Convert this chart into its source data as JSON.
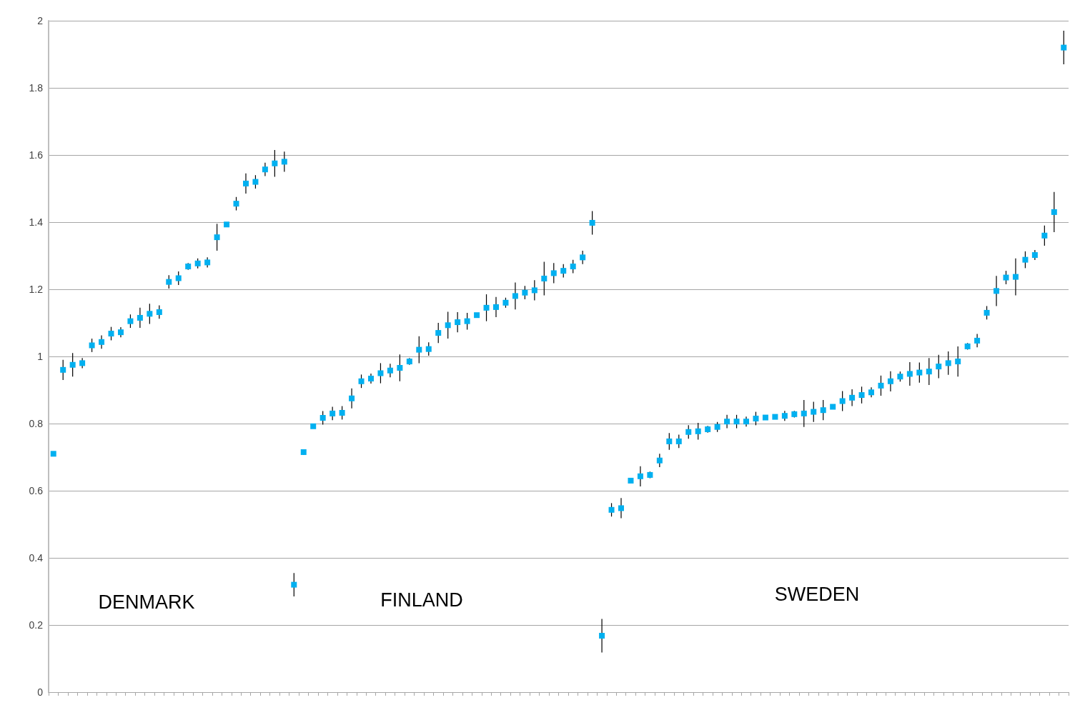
{
  "chart_data": {
    "type": "scatter",
    "categories": [
      null,
      null,
      null,
      null,
      null,
      null,
      null,
      null,
      null,
      null,
      null,
      null,
      null,
      null,
      null,
      null,
      null,
      null,
      null,
      null,
      null,
      null,
      null,
      null,
      null,
      null,
      null,
      null,
      null,
      null,
      null,
      null,
      null,
      null,
      null,
      null,
      null,
      null,
      null,
      null,
      null,
      null,
      null,
      null,
      null,
      null,
      null,
      null,
      null,
      null,
      null,
      null,
      null,
      null,
      null,
      null,
      null,
      null,
      null,
      null,
      null,
      null,
      null,
      null,
      null,
      null,
      null,
      null,
      null,
      null,
      null,
      null,
      null,
      null,
      null,
      null,
      null,
      null,
      null,
      null,
      null,
      null,
      null,
      null,
      null,
      null,
      null,
      null,
      null,
      null,
      null,
      null,
      null,
      null,
      null,
      null,
      null,
      null,
      null,
      null,
      null,
      null,
      null,
      null,
      null,
      null
    ],
    "values": [
      0.71,
      0.96,
      0.975,
      0.98,
      1.033,
      1.043,
      1.068,
      1.072,
      1.105,
      1.115,
      1.127,
      1.132,
      1.222,
      1.233,
      1.268,
      1.277,
      1.28,
      1.355,
      1.393,
      1.455,
      1.515,
      1.52,
      1.557,
      1.575,
      1.58,
      0.32,
      0.715,
      0.792,
      0.817,
      0.83,
      0.832,
      0.875,
      0.926,
      0.934,
      0.95,
      0.958,
      0.966,
      0.985,
      1.02,
      1.022,
      1.07,
      1.093,
      1.102,
      1.105,
      1.123,
      1.145,
      1.147,
      1.16,
      1.18,
      1.19,
      1.197,
      1.232,
      1.248,
      1.255,
      1.268,
      1.295,
      1.398,
      0.168,
      0.543,
      0.548,
      0.63,
      0.643,
      0.647,
      0.69,
      0.747,
      0.747,
      0.775,
      0.777,
      0.783,
      0.79,
      0.806,
      0.806,
      0.806,
      0.815,
      0.818,
      0.82,
      0.823,
      0.828,
      0.83,
      0.835,
      0.84,
      0.85,
      0.867,
      0.877,
      0.885,
      0.893,
      0.913,
      0.926,
      0.94,
      0.948,
      0.952,
      0.955,
      0.97,
      0.98,
      0.985,
      1.03,
      1.047,
      1.13,
      1.195,
      1.235,
      1.237,
      1.288,
      1.302,
      1.36,
      1.43,
      1.92
    ],
    "errors": [
      0.005,
      0.03,
      0.035,
      0.015,
      0.02,
      0.02,
      0.02,
      0.015,
      0.02,
      0.03,
      0.03,
      0.02,
      0.02,
      0.02,
      0.01,
      0.015,
      0.015,
      0.04,
      null,
      0.02,
      0.03,
      0.02,
      0.02,
      0.04,
      0.03,
      0.035,
      0.008,
      0.005,
      0.02,
      0.02,
      0.02,
      0.03,
      0.02,
      0.015,
      0.03,
      0.02,
      0.04,
      0.01,
      0.04,
      0.02,
      0.03,
      0.04,
      0.03,
      0.025,
      null,
      0.04,
      0.03,
      0.015,
      0.04,
      0.02,
      0.03,
      0.05,
      0.03,
      0.02,
      0.02,
      0.02,
      0.035,
      0.05,
      0.02,
      0.03,
      0.005,
      0.03,
      0.01,
      0.02,
      0.025,
      0.02,
      0.02,
      0.025,
      0.01,
      0.015,
      0.02,
      0.02,
      0.015,
      0.02,
      null,
      null,
      0.015,
      0.01,
      0.04,
      0.03,
      0.03,
      null,
      0.03,
      0.025,
      0.025,
      0.015,
      0.03,
      0.03,
      0.015,
      0.035,
      0.03,
      0.04,
      0.035,
      0.035,
      0.045,
      0.01,
      0.02,
      0.02,
      0.045,
      0.02,
      0.055,
      0.025,
      0.015,
      0.03,
      0.06,
      0.05
    ],
    "color": "#00b0f0",
    "marker": "square",
    "ylim": [
      0,
      2
    ],
    "yticks": [
      0,
      0.2,
      0.4,
      0.6,
      0.8,
      1,
      1.2,
      1.4,
      1.6,
      1.8,
      2
    ],
    "grid": "y",
    "tick_labels": "y",
    "annotations": [
      "DENMARK",
      "FINLAND",
      "SWEDEN"
    ]
  }
}
